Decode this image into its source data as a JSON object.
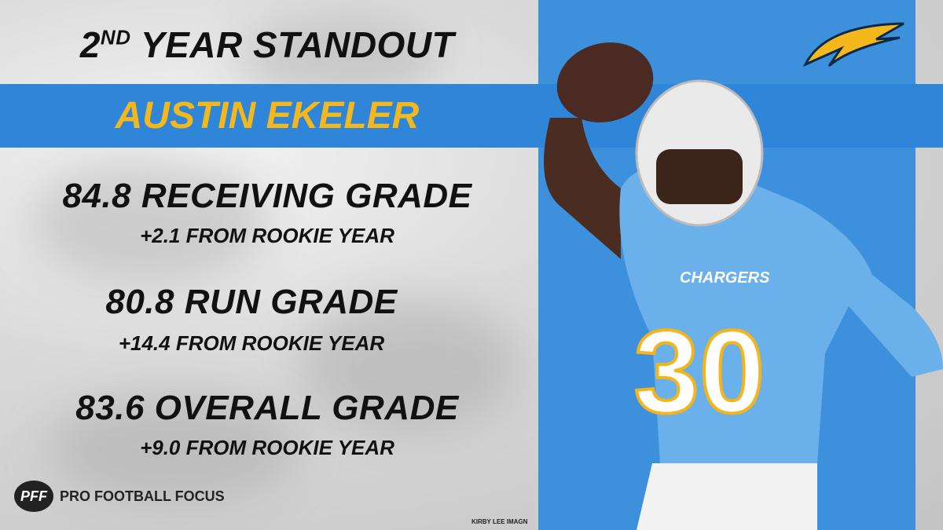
{
  "header": {
    "title_number": "2",
    "title_suffix": "ND",
    "title_rest": "YEAR STANDOUT",
    "player_name": "AUSTIN EKELER"
  },
  "stats": [
    {
      "headline": "84.8 RECEIVING GRADE",
      "change": "+2.1 FROM ROOKIE YEAR"
    },
    {
      "headline": "80.8 RUN GRADE",
      "change": "+14.4 FROM ROOKIE YEAR"
    },
    {
      "headline": "83.6 OVERALL GRADE",
      "change": "+9.0 FROM ROOKIE YEAR"
    }
  ],
  "footer": {
    "logo_mark": "PFF",
    "logo_text": "PRO FOOTBALL FOCUS",
    "photo_credit": "KIRBY LEE IMAGN"
  },
  "photo": {
    "jersey_text": "CHARGERS",
    "jersey_number": "30"
  }
}
